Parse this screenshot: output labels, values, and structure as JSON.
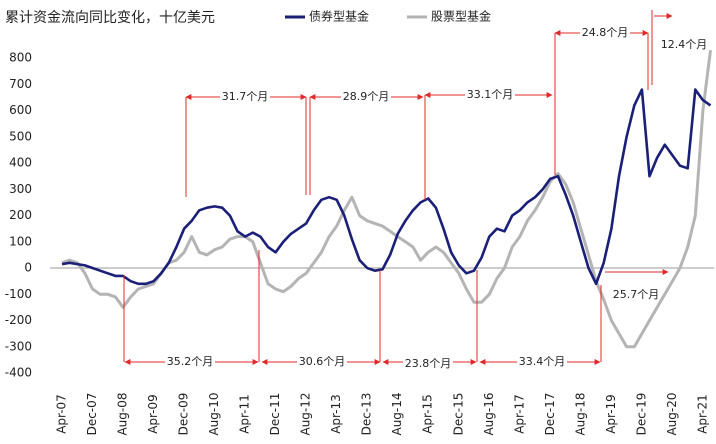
{
  "chart_data": {
    "type": "line",
    "title": "累计资金流向同比变化，十亿美元",
    "categories": [
      "Apr-07",
      null,
      null,
      null,
      "Dec-07",
      null,
      null,
      null,
      "Aug-08",
      null,
      null,
      null,
      "Apr-09",
      null,
      null,
      null,
      "Dec-09",
      null,
      null,
      null,
      "Aug-10",
      null,
      null,
      null,
      "Apr-11",
      null,
      null,
      null,
      "Dec-11",
      null,
      null,
      null,
      "Aug-12",
      null,
      null,
      null,
      "Apr-13",
      null,
      null,
      null,
      "Dec-13",
      null,
      null,
      null,
      "Aug-14",
      null,
      null,
      null,
      "Apr-15",
      null,
      null,
      null,
      "Dec-15",
      null,
      null,
      null,
      "Aug-16",
      null,
      null,
      null,
      "Apr-17",
      null,
      null,
      null,
      "Dec-17",
      null,
      null,
      null,
      "Aug-18",
      null,
      null,
      null,
      "Apr-19",
      null,
      null,
      null,
      "Dec-19",
      null,
      null,
      null,
      "Aug-20",
      null,
      null,
      null,
      "Apr-21",
      null
    ],
    "series": [
      {
        "name": "债券型基金",
        "color": "#1a1f78",
        "values": [
          15,
          20,
          15,
          10,
          0,
          -10,
          -20,
          -30,
          -30,
          -50,
          -60,
          -60,
          -50,
          -20,
          20,
          80,
          150,
          180,
          220,
          230,
          235,
          230,
          200,
          140,
          120,
          135,
          120,
          80,
          60,
          100,
          130,
          150,
          170,
          220,
          260,
          270,
          260,
          200,
          110,
          30,
          0,
          -10,
          -5,
          50,
          130,
          180,
          220,
          250,
          265,
          230,
          150,
          60,
          10,
          -20,
          -10,
          40,
          120,
          150,
          140,
          200,
          220,
          250,
          270,
          300,
          340,
          350,
          280,
          200,
          100,
          0,
          -60,
          20,
          150,
          350,
          500,
          620,
          680,
          350,
          420,
          470,
          430,
          390,
          380,
          680,
          640,
          620
        ]
      },
      {
        "name": "股票型基金",
        "color": "#b4b4b4",
        "values": [
          20,
          30,
          20,
          -20,
          -80,
          -100,
          -100,
          -110,
          -150,
          -110,
          -80,
          -70,
          -60,
          -20,
          20,
          30,
          60,
          120,
          60,
          50,
          70,
          80,
          110,
          120,
          120,
          100,
          20,
          -60,
          -80,
          -90,
          -70,
          -40,
          -20,
          20,
          60,
          120,
          160,
          220,
          270,
          200,
          180,
          170,
          160,
          140,
          120,
          100,
          80,
          30,
          60,
          80,
          60,
          20,
          -20,
          -80,
          -130,
          -130,
          -100,
          -40,
          0,
          80,
          120,
          180,
          220,
          270,
          330,
          360,
          320,
          250,
          150,
          50,
          -50,
          -120,
          -200,
          -250,
          -300,
          -300,
          -250,
          -200,
          -150,
          -100,
          -50,
          0,
          80,
          200,
          600,
          830
        ]
      }
    ],
    "ylim": [
      -400,
      850
    ],
    "yticks": [
      -400,
      -300,
      -200,
      -100,
      0,
      100,
      200,
      300,
      400,
      500,
      600,
      700,
      800
    ],
    "annotations": [
      "31.7个月",
      "28.9个月",
      "33.1个月",
      "24.8个月",
      "12.4个月",
      "35.2个月",
      "30.6个月",
      "23.8个月",
      "33.4个月",
      "25.7个月"
    ],
    "annotation_color": "#e02828"
  }
}
